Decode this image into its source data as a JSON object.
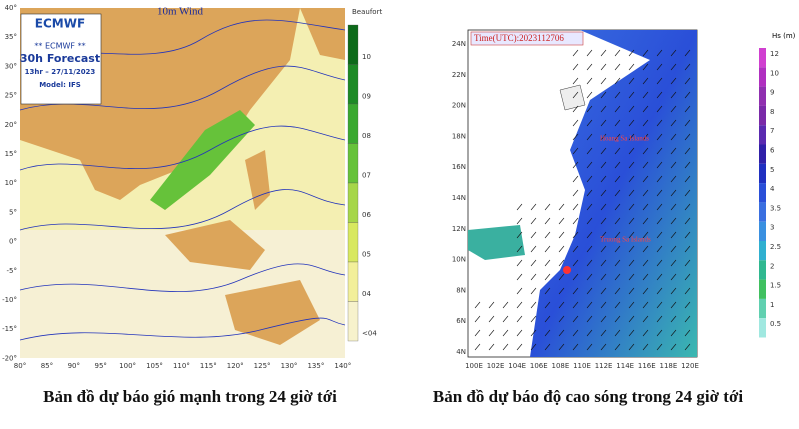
{
  "wind_map": {
    "title": "10m Wind",
    "logo": "ECMWF",
    "info_box": [
      "** ECMWF **",
      "30h Forecast",
      "13hr – 27/11/2023",
      "Model: IFS"
    ],
    "lat_labels": [
      "40°",
      "35°",
      "30°",
      "25°",
      "20°",
      "15°",
      "10°",
      "5°",
      "0°",
      "-5°",
      "-10°",
      "-15°",
      "-20°"
    ],
    "lon_labels": [
      "80°",
      "85°",
      "90°",
      "95°",
      "100°",
      "105°",
      "110°",
      "115°",
      "120°",
      "125°",
      "130°",
      "135°",
      "140°"
    ],
    "legend": {
      "title": "Beaufort",
      "labels": [
        "10",
        "09",
        "08",
        "07",
        "06",
        "05",
        "04",
        "<04"
      ]
    },
    "caption": "Bản đồ dự báo gió mạnh trong 24 giờ tới"
  },
  "wave_map": {
    "time": "Time(UTC):2023112706",
    "annotations": [
      "Hoang Sa Islands",
      "Truong Sa Islands"
    ],
    "lat_labels": [
      "24N",
      "22N",
      "20N",
      "18N",
      "16N",
      "14N",
      "12N",
      "10N",
      "8N",
      "6N",
      "4N"
    ],
    "lon_labels": [
      "100E",
      "102E",
      "104E",
      "106E",
      "108E",
      "110E",
      "112E",
      "114E",
      "116E",
      "118E",
      "120E"
    ],
    "legend": {
      "title": "Hs (m)",
      "labels": [
        "12",
        "10",
        "9",
        "8",
        "7",
        "6",
        "5",
        "4",
        "3.5",
        "3",
        "2.5",
        "2",
        "1.5",
        "1",
        "0.5"
      ]
    },
    "caption": "Bản đồ dự báo độ cao sóng trong 24 giờ tới"
  }
}
